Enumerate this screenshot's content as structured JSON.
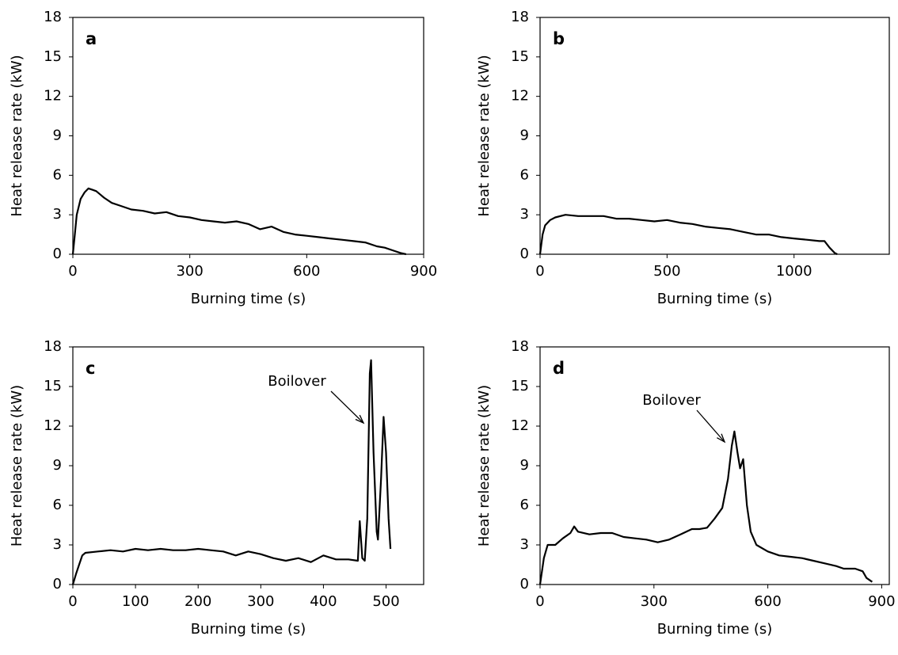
{
  "chart_data": [
    {
      "type": "line",
      "panel_label": "a",
      "xlabel": "Burning time (s)",
      "ylabel": "Heat release rate (kW)",
      "xlim": [
        0,
        900
      ],
      "ylim": [
        0,
        18
      ],
      "xticks": [
        0,
        300,
        600,
        900
      ],
      "yticks": [
        0,
        3,
        6,
        9,
        12,
        15,
        18
      ],
      "x": [
        0,
        5,
        10,
        20,
        30,
        40,
        50,
        60,
        80,
        100,
        120,
        150,
        180,
        210,
        240,
        270,
        300,
        330,
        360,
        390,
        420,
        450,
        480,
        510,
        540,
        570,
        600,
        630,
        660,
        690,
        720,
        750,
        780,
        800,
        820,
        840,
        855
      ],
      "series": [
        {
          "color": "#000000",
          "values": [
            0,
            1.5,
            3,
            4.2,
            4.7,
            5.0,
            4.9,
            4.8,
            4.3,
            3.9,
            3.7,
            3.4,
            3.3,
            3.1,
            3.2,
            2.9,
            2.8,
            2.6,
            2.5,
            2.4,
            2.5,
            2.3,
            1.9,
            2.1,
            1.7,
            1.5,
            1.4,
            1.3,
            1.2,
            1.1,
            1.0,
            0.9,
            0.6,
            0.5,
            0.3,
            0.1,
            0
          ]
        }
      ]
    },
    {
      "type": "line",
      "panel_label": "b",
      "xlabel": "Burning time (s)",
      "ylabel": "Heat release rate (kW)",
      "xlim": [
        0,
        1375
      ],
      "ylim": [
        0,
        18
      ],
      "xticks": [
        0,
        500,
        1000
      ],
      "yticks": [
        0,
        3,
        6,
        9,
        12,
        15,
        18
      ],
      "x": [
        0,
        10,
        20,
        40,
        60,
        100,
        150,
        200,
        250,
        300,
        350,
        400,
        450,
        500,
        550,
        600,
        650,
        700,
        750,
        800,
        850,
        900,
        950,
        1000,
        1050,
        1100,
        1120,
        1140,
        1160,
        1170
      ],
      "series": [
        {
          "color": "#000000",
          "values": [
            0,
            1.5,
            2.2,
            2.6,
            2.8,
            3.0,
            2.9,
            2.9,
            2.9,
            2.7,
            2.7,
            2.6,
            2.5,
            2.6,
            2.4,
            2.3,
            2.1,
            2.0,
            1.9,
            1.7,
            1.5,
            1.5,
            1.3,
            1.2,
            1.1,
            1.0,
            1.0,
            0.5,
            0.1,
            0
          ]
        }
      ]
    },
    {
      "type": "line",
      "panel_label": "c",
      "xlabel": "Burning time (s)",
      "ylabel": "Heat release rate (kW)",
      "xlim": [
        0,
        560
      ],
      "ylim": [
        0,
        18
      ],
      "xticks": [
        0,
        100,
        200,
        300,
        400,
        500
      ],
      "yticks": [
        0,
        3,
        6,
        9,
        12,
        15,
        18
      ],
      "annotation": "Boilover",
      "x": [
        0,
        5,
        10,
        15,
        20,
        40,
        60,
        80,
        100,
        120,
        140,
        160,
        180,
        200,
        220,
        240,
        260,
        280,
        300,
        320,
        340,
        360,
        380,
        400,
        420,
        440,
        455,
        458,
        462,
        466,
        470,
        474,
        476,
        480,
        485,
        487,
        492,
        496,
        500,
        504,
        507
      ],
      "series": [
        {
          "color": "#000000",
          "values": [
            0,
            0.8,
            1.5,
            2.2,
            2.4,
            2.5,
            2.6,
            2.5,
            2.7,
            2.6,
            2.7,
            2.6,
            2.6,
            2.7,
            2.6,
            2.5,
            2.2,
            2.5,
            2.3,
            2.0,
            1.8,
            2.0,
            1.7,
            2.2,
            1.9,
            1.9,
            1.8,
            4.8,
            2.0,
            1.8,
            5,
            16,
            17,
            10,
            4,
            3.4,
            8,
            12.7,
            10,
            5,
            2.7
          ]
        }
      ]
    },
    {
      "type": "line",
      "panel_label": "d",
      "xlabel": "Burning time (s)",
      "ylabel": "Heat release rate (kW)",
      "xlim": [
        0,
        920
      ],
      "ylim": [
        0,
        18
      ],
      "xticks": [
        0,
        300,
        600,
        900
      ],
      "yticks": [
        0,
        3,
        6,
        9,
        12,
        15,
        18
      ],
      "annotation": "Boilover",
      "x": [
        0,
        10,
        20,
        40,
        60,
        80,
        90,
        100,
        130,
        160,
        190,
        220,
        250,
        280,
        310,
        340,
        370,
        400,
        420,
        440,
        460,
        480,
        495,
        505,
        512,
        520,
        527,
        535,
        545,
        555,
        570,
        600,
        630,
        660,
        690,
        720,
        750,
        780,
        800,
        830,
        850,
        860,
        875
      ],
      "series": [
        {
          "color": "#000000",
          "values": [
            0,
            2,
            3.0,
            3.0,
            3.5,
            3.9,
            4.4,
            4.0,
            3.8,
            3.9,
            3.9,
            3.6,
            3.5,
            3.4,
            3.2,
            3.4,
            3.8,
            4.2,
            4.2,
            4.3,
            5.0,
            5.8,
            8,
            10.5,
            11.6,
            10,
            8.8,
            9.5,
            6,
            4,
            3.0,
            2.5,
            2.2,
            2.1,
            2.0,
            1.8,
            1.6,
            1.4,
            1.2,
            1.2,
            1.0,
            0.5,
            0.2
          ]
        }
      ]
    }
  ]
}
